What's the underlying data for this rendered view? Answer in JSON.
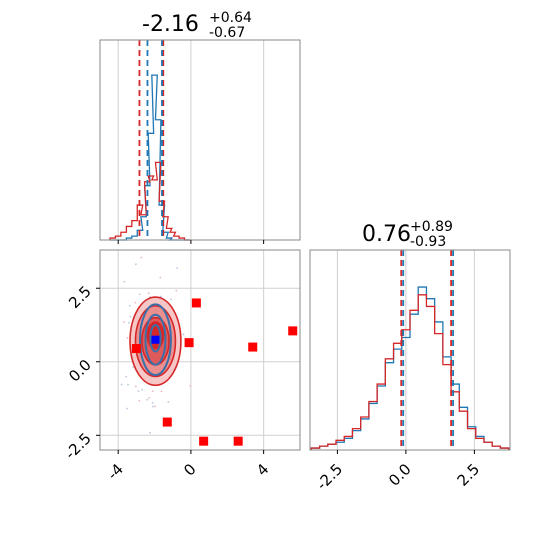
{
  "chart_data": [
    {
      "panel": "x marginal histogram",
      "type": "histogram",
      "title": {
        "value": "-2.16",
        "upper": "+0.64",
        "lower": "-0.67"
      },
      "xlim": [
        -5,
        6
      ],
      "grid": true,
      "quantiles": {
        "red": [
          -2.83,
          -1.52
        ],
        "blue": [
          -2.5,
          -1.7
        ]
      },
      "bins_x": [
        -4.3,
        -4.0,
        -3.7,
        -3.4,
        -3.1,
        -2.8,
        -2.6,
        -2.4,
        -2.2,
        -2.0,
        -1.8,
        -1.6,
        -1.4,
        -1.2,
        -1.0,
        -0.8,
        -0.5,
        -0.2
      ],
      "series": [
        {
          "color": "#1f77b4",
          "values": [
            0,
            0,
            0,
            0.01,
            0.02,
            0.05,
            0.12,
            0.28,
            0.55,
            0.85,
            0.62,
            0.18,
            0.04,
            0.01,
            0,
            0,
            0,
            0
          ]
        },
        {
          "color": "#d62728",
          "values": [
            0.01,
            0.02,
            0.04,
            0.07,
            0.1,
            0.18,
            0.13,
            0.3,
            0.33,
            0.31,
            0.4,
            0.2,
            0.12,
            0.06,
            0.04,
            0.02,
            0.01,
            0
          ]
        }
      ]
    },
    {
      "panel": "y marginal histogram",
      "type": "histogram",
      "title": {
        "value": "0.76",
        "upper": "+0.89",
        "lower": "-0.93"
      },
      "xlim": [
        -3.5,
        3.8
      ],
      "xticks": [
        "-2.5",
        "0.0",
        "2.5"
      ],
      "grid": true,
      "quantiles": {
        "red": [
          -0.17,
          1.65
        ],
        "blue": [
          -0.17,
          1.65
        ]
      },
      "bins_x": [
        -3.3,
        -3.0,
        -2.7,
        -2.4,
        -2.1,
        -1.8,
        -1.5,
        -1.2,
        -0.9,
        -0.6,
        -0.3,
        0.0,
        0.3,
        0.6,
        0.9,
        1.2,
        1.5,
        1.8,
        2.1,
        2.4,
        2.7,
        3.0,
        3.3,
        3.6
      ],
      "series": [
        {
          "color": "#1f77b4",
          "values": [
            0.01,
            0.02,
            0.03,
            0.04,
            0.06,
            0.1,
            0.16,
            0.24,
            0.33,
            0.45,
            0.52,
            0.58,
            0.7,
            0.84,
            0.78,
            0.66,
            0.48,
            0.34,
            0.22,
            0.12,
            0.07,
            0.04,
            0.02,
            0.01
          ]
        },
        {
          "color": "#d62728",
          "values": [
            0.01,
            0.02,
            0.03,
            0.05,
            0.07,
            0.11,
            0.17,
            0.25,
            0.34,
            0.47,
            0.55,
            0.62,
            0.72,
            0.8,
            0.74,
            0.6,
            0.44,
            0.3,
            0.2,
            0.11,
            0.06,
            0.04,
            0.02,
            0.01
          ]
        }
      ]
    },
    {
      "panel": "joint 2D",
      "type": "scatter",
      "xlim": [
        -5,
        6
      ],
      "ylim": [
        -3,
        3.8
      ],
      "xticks": [
        "-4",
        "0",
        "4"
      ],
      "yticks": [
        "2.5",
        "0.0",
        "-2.5"
      ],
      "grid": true,
      "contours": {
        "red": [
          {
            "cx": -1.95,
            "cy": 0.7,
            "rx": 1.4,
            "ry": 3.0,
            "fill": "#f7c7c7"
          },
          {
            "cx": -1.95,
            "cy": 0.7,
            "rx": 1.1,
            "ry": 2.4,
            "fill": "#ec8f8f"
          },
          {
            "cx": -1.95,
            "cy": 0.7,
            "rx": 0.75,
            "ry": 1.6,
            "fill": "#df5a5a"
          },
          {
            "cx": -1.95,
            "cy": 0.9,
            "rx": 0.45,
            "ry": 0.9,
            "fill": "#d62728"
          }
        ],
        "blue": [
          {
            "cx": -1.95,
            "cy": 0.75,
            "rx": 0.85,
            "ry": 2.4
          },
          {
            "cx": -1.95,
            "cy": 0.75,
            "rx": 0.55,
            "ry": 1.7
          },
          {
            "cx": -1.95,
            "cy": 0.8,
            "rx": 0.28,
            "ry": 0.9
          }
        ]
      },
      "markers": {
        "red": [
          [
            -3.0,
            0.45
          ],
          [
            0.3,
            2.0
          ],
          [
            -0.1,
            0.65
          ],
          [
            3.4,
            0.5
          ],
          [
            5.6,
            1.05
          ],
          [
            -1.3,
            -2.05
          ],
          [
            0.7,
            -2.7
          ],
          [
            2.6,
            -2.7
          ]
        ],
        "blue": [
          [
            -1.95,
            0.75
          ]
        ]
      }
    }
  ]
}
